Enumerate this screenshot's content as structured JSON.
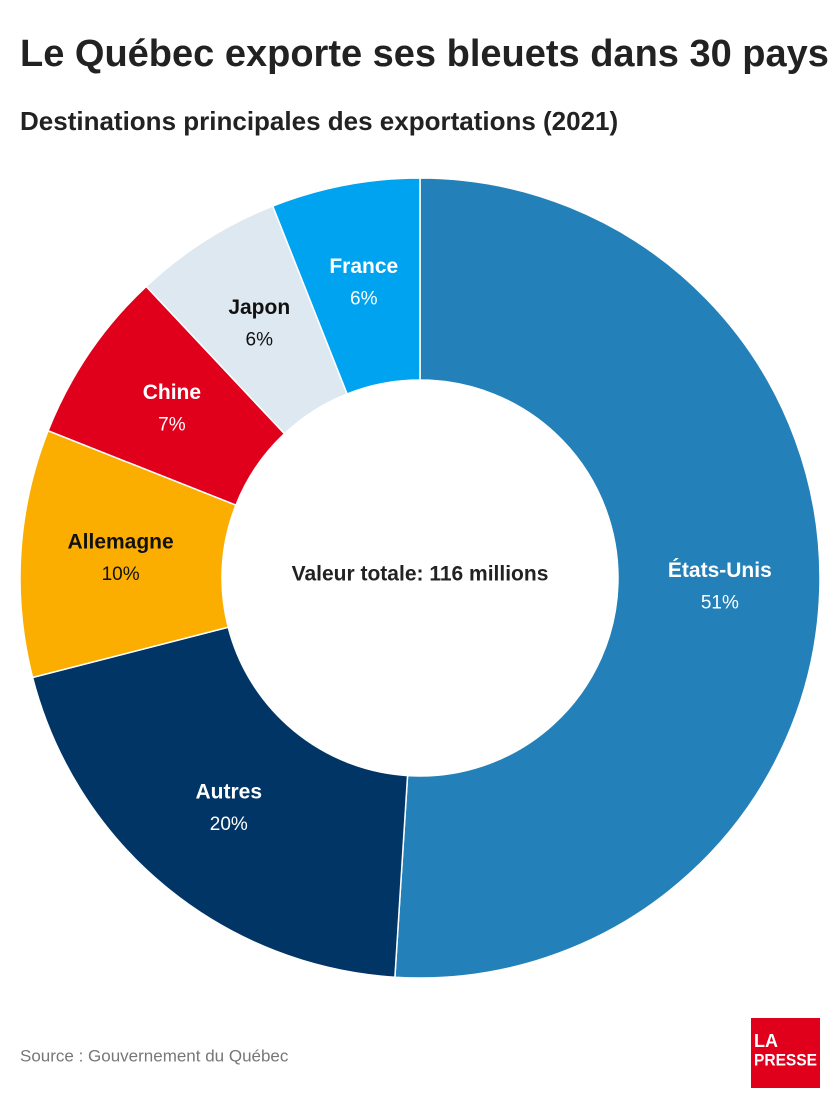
{
  "chart_data": {
    "type": "pie",
    "title": "Le Québec exporte ses bleuets dans 30 pays",
    "subtitle": "Destinations principales des exportations (2021)",
    "center_label": "Valeur totale: 116 millions",
    "categories": [
      "États-Unis",
      "Autres",
      "Allemagne",
      "Chine",
      "Japon",
      "France"
    ],
    "values": [
      51,
      20,
      10,
      7,
      6,
      6
    ],
    "value_labels": [
      "51%",
      "20%",
      "10%",
      "7%",
      "6%",
      "6%"
    ],
    "colors": [
      "#2380b8",
      "#003566",
      "#fcae00",
      "#e0001b",
      "#dde8f0",
      "#00a3ef"
    ],
    "source": "Source : Gouvernement du Québec",
    "logo": [
      "LA",
      "PRESSE"
    ]
  }
}
